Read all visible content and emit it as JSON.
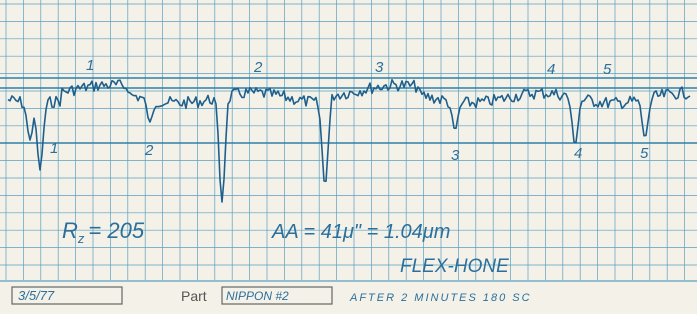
{
  "peak_labels": [
    "1",
    "2",
    "3",
    "4",
    "5"
  ],
  "valley_labels": [
    "1",
    "2",
    "3",
    "4",
    "5"
  ],
  "notes": {
    "rz": {
      "symbol": "R",
      "subscript": "z",
      "value": "= 205"
    },
    "aa": "AA = 41μ\" = 1.04μm",
    "process": "FLEX-HONE"
  },
  "footer": {
    "date": "3/5/77",
    "part_label": "Part",
    "part": "NIPPON #2",
    "remark": "AFTER 2 MINUTES 180 SC"
  }
}
